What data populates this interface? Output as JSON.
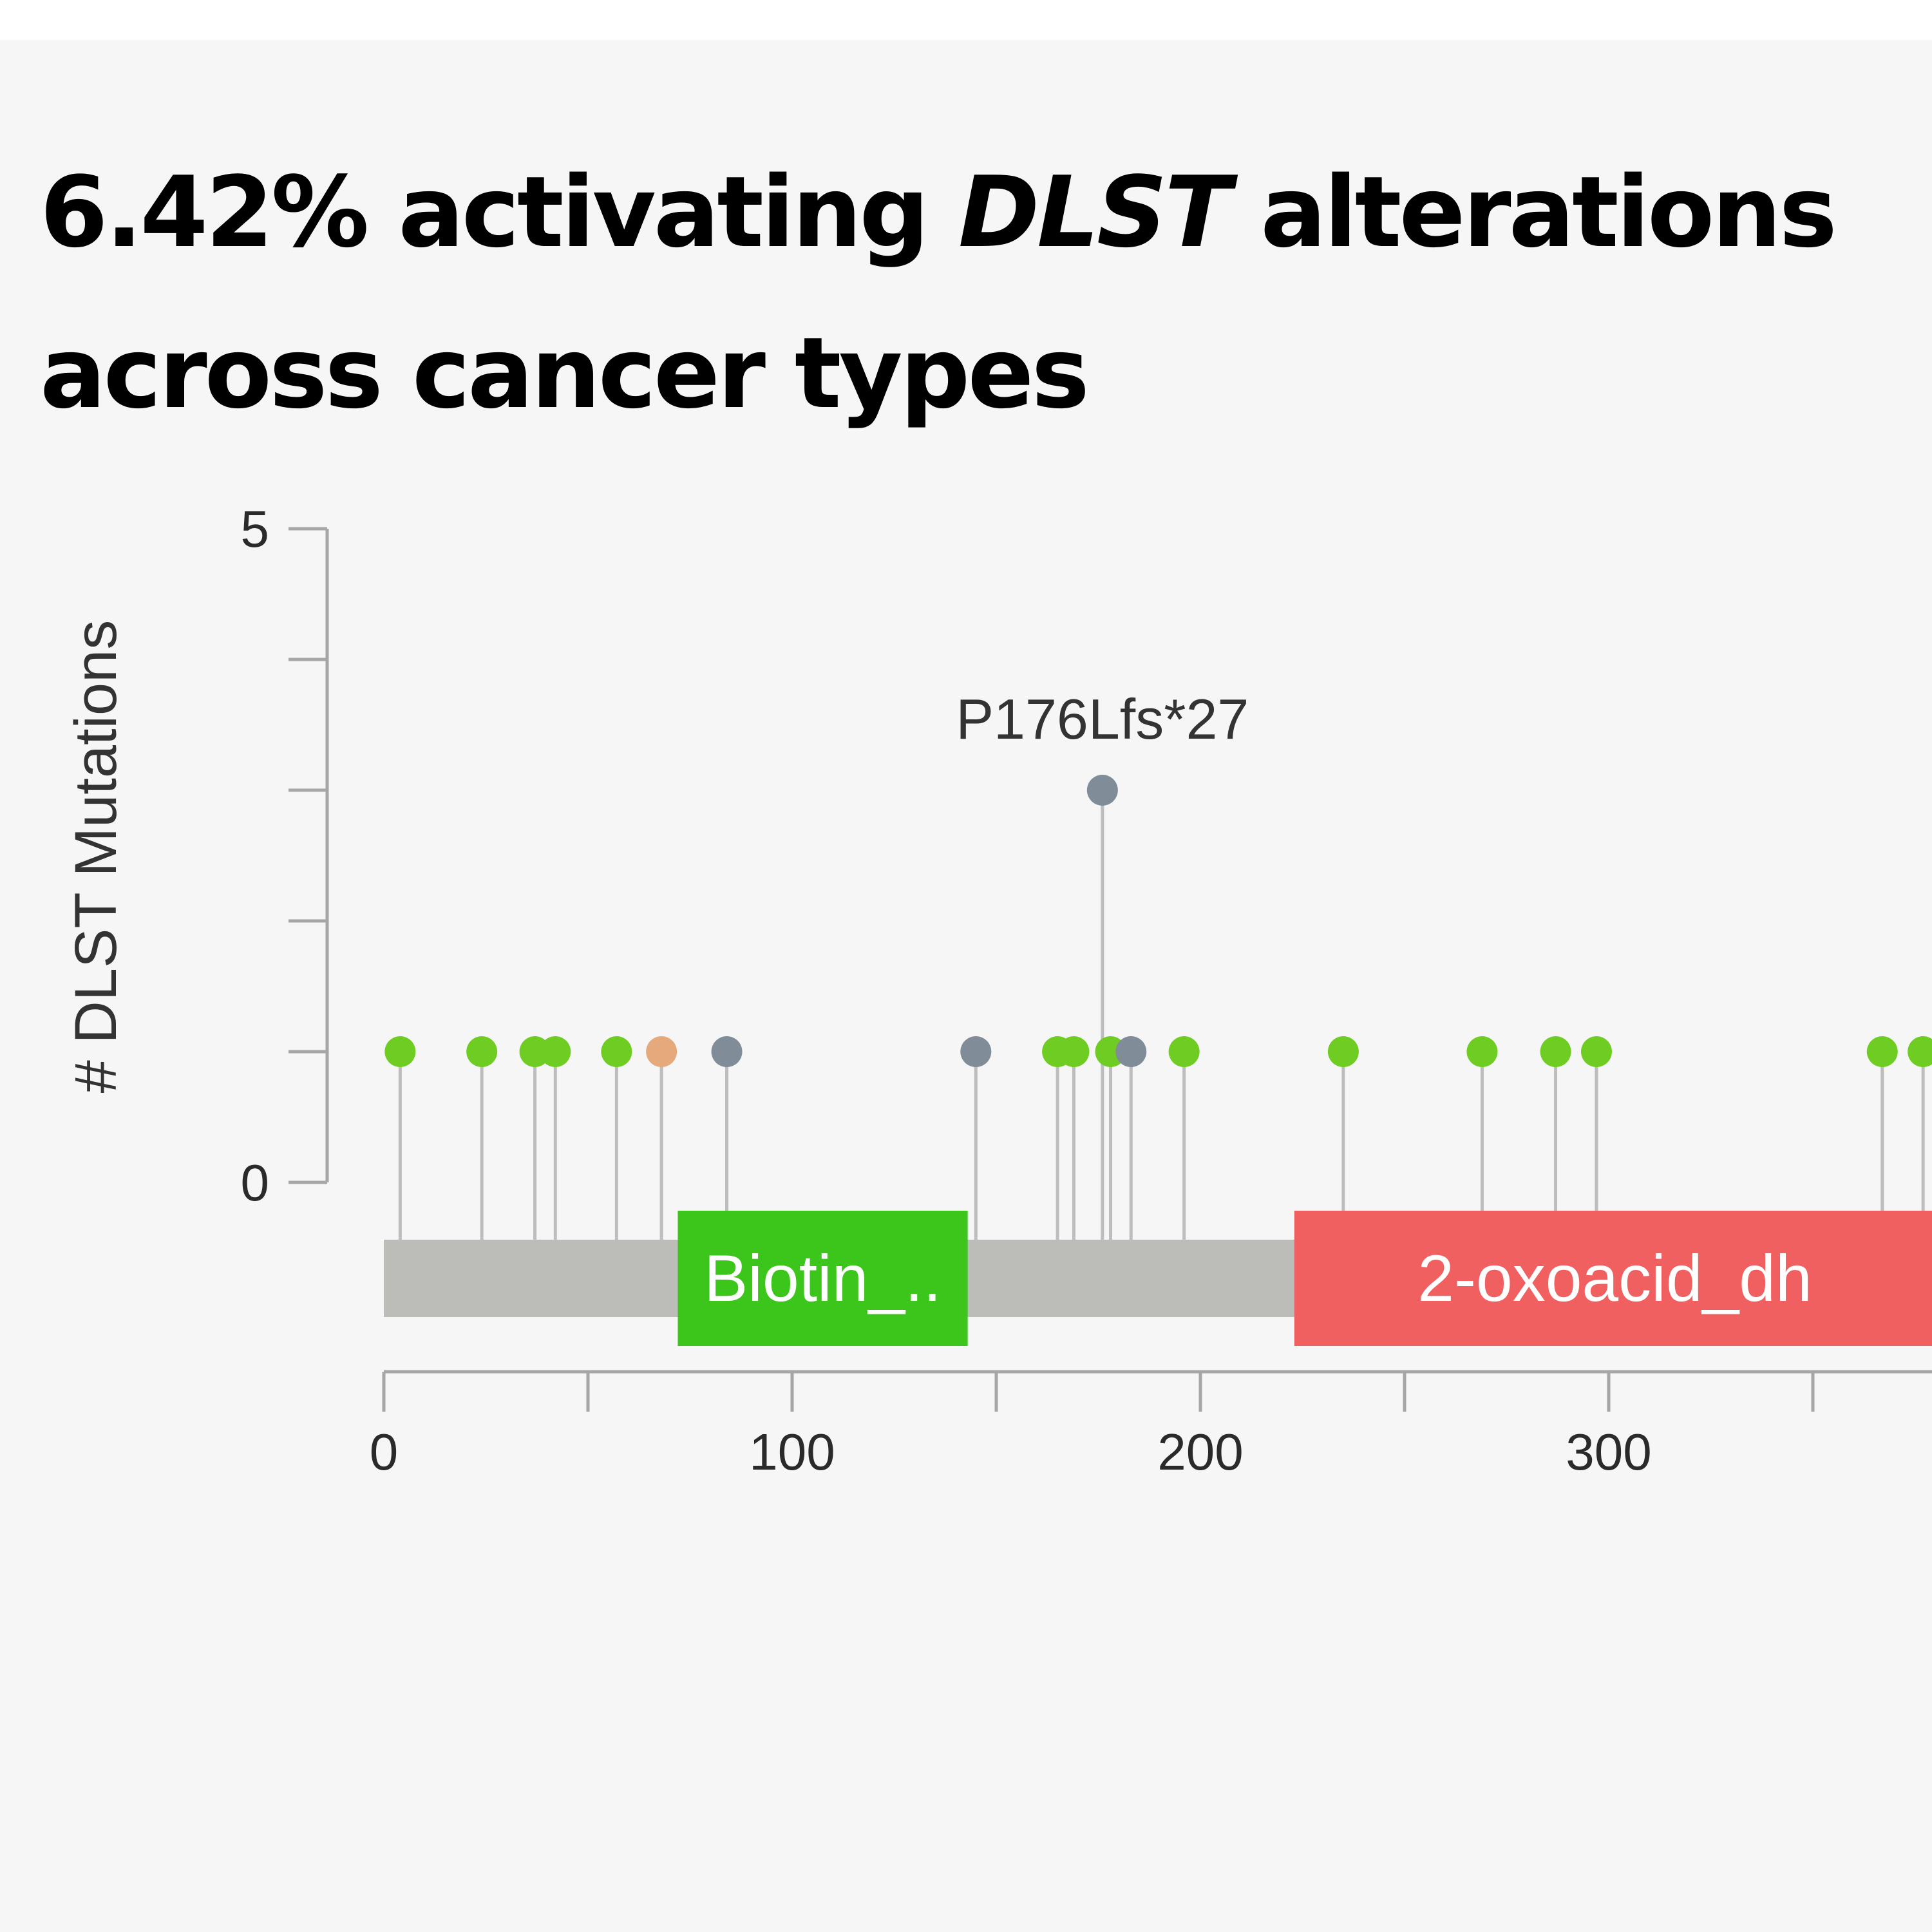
{
  "title": {
    "prefix": "6.42% activating ",
    "gene": "DLST",
    "suffix": " alterations across cancer types"
  },
  "colors": {
    "background": "#f6f6f6",
    "missense": "#6fcc22",
    "truncating": "#808d99",
    "inframe": "#e5a97c",
    "backbone": "#bcbdb9",
    "stem": "#bdbdbd",
    "axis": "#a6a6a6"
  },
  "chart_data": {
    "type": "lollipop",
    "ylabel": "# DLST Mutations",
    "ylim": [
      0,
      5
    ],
    "y_ticks": [
      0,
      1,
      2,
      3,
      4,
      5
    ],
    "y_tick_labels": [
      "0",
      "5"
    ],
    "xlim": [
      0,
      380
    ],
    "x_ticks": [
      0,
      50,
      100,
      150,
      200,
      250,
      300,
      350
    ],
    "x_tick_labels": [
      "0",
      "100",
      "200",
      "300"
    ],
    "protein_start": 0,
    "mutations": [
      {
        "position": 4,
        "count": 1,
        "type": "missense"
      },
      {
        "position": 24,
        "count": 1,
        "type": "missense"
      },
      {
        "position": 37,
        "count": 1,
        "type": "missense"
      },
      {
        "position": 42,
        "count": 1,
        "type": "missense"
      },
      {
        "position": 57,
        "count": 1,
        "type": "missense"
      },
      {
        "position": 68,
        "count": 1,
        "type": "inframe"
      },
      {
        "position": 84,
        "count": 1,
        "type": "truncating"
      },
      {
        "position": 145,
        "count": 1,
        "type": "truncating"
      },
      {
        "position": 165,
        "count": 1,
        "type": "missense"
      },
      {
        "position": 169,
        "count": 1,
        "type": "missense"
      },
      {
        "position": 176,
        "count": 3,
        "type": "truncating",
        "label": "P176Lfs*27"
      },
      {
        "position": 178,
        "count": 1,
        "type": "missense"
      },
      {
        "position": 183,
        "count": 1,
        "type": "truncating"
      },
      {
        "position": 196,
        "count": 1,
        "type": "missense"
      },
      {
        "position": 235,
        "count": 1,
        "type": "missense"
      },
      {
        "position": 269,
        "count": 1,
        "type": "missense"
      },
      {
        "position": 287,
        "count": 1,
        "type": "missense"
      },
      {
        "position": 297,
        "count": 1,
        "type": "missense"
      },
      {
        "position": 367,
        "count": 1,
        "type": "missense"
      },
      {
        "position": 377,
        "count": 1,
        "type": "missense"
      }
    ],
    "domains": [
      {
        "name": "Biotin_..",
        "start": 72,
        "end": 143,
        "color": "#3cc51a"
      },
      {
        "name": "2-oxoacid_dh",
        "start": 223,
        "end": 380,
        "color": "#f06060"
      }
    ]
  }
}
